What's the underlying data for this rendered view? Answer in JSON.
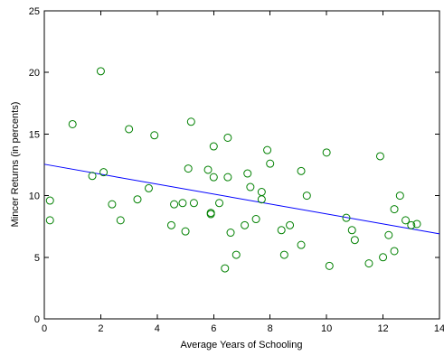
{
  "chart_data": {
    "type": "scatter",
    "title": "",
    "xlabel": "Average Years of Schooling",
    "ylabel": "Mincer Returns (in percents)",
    "xlim": [
      0,
      14
    ],
    "ylim": [
      0,
      25
    ],
    "xticks": [
      "0",
      "2",
      "4",
      "6",
      "8",
      "10",
      "12",
      "14"
    ],
    "yticks": [
      "0",
      "5",
      "10",
      "15",
      "20",
      "25"
    ],
    "grid": false,
    "legend": "none",
    "marker_color": "#008000",
    "line_color": "#0000ff",
    "points": [
      {
        "x": 0.2,
        "y": 9.6
      },
      {
        "x": 0.2,
        "y": 8.0
      },
      {
        "x": 1.0,
        "y": 15.8
      },
      {
        "x": 1.7,
        "y": 11.6
      },
      {
        "x": 2.0,
        "y": 20.1
      },
      {
        "x": 2.1,
        "y": 11.9
      },
      {
        "x": 2.4,
        "y": 9.3
      },
      {
        "x": 2.7,
        "y": 8.0
      },
      {
        "x": 3.0,
        "y": 15.4
      },
      {
        "x": 3.3,
        "y": 9.7
      },
      {
        "x": 3.7,
        "y": 10.6
      },
      {
        "x": 3.9,
        "y": 14.9
      },
      {
        "x": 4.5,
        "y": 7.6
      },
      {
        "x": 4.6,
        "y": 9.3
      },
      {
        "x": 4.9,
        "y": 9.4
      },
      {
        "x": 5.0,
        "y": 7.1
      },
      {
        "x": 5.1,
        "y": 12.2
      },
      {
        "x": 5.2,
        "y": 16.0
      },
      {
        "x": 5.3,
        "y": 9.4
      },
      {
        "x": 5.8,
        "y": 12.1
      },
      {
        "x": 5.9,
        "y": 8.6
      },
      {
        "x": 5.9,
        "y": 8.5
      },
      {
        "x": 6.0,
        "y": 14.0
      },
      {
        "x": 6.0,
        "y": 11.5
      },
      {
        "x": 6.2,
        "y": 9.4
      },
      {
        "x": 6.4,
        "y": 4.1
      },
      {
        "x": 6.5,
        "y": 14.7
      },
      {
        "x": 6.5,
        "y": 11.5
      },
      {
        "x": 6.6,
        "y": 7.0
      },
      {
        "x": 6.8,
        "y": 5.2
      },
      {
        "x": 7.1,
        "y": 7.6
      },
      {
        "x": 7.2,
        "y": 11.8
      },
      {
        "x": 7.3,
        "y": 10.7
      },
      {
        "x": 7.5,
        "y": 8.1
      },
      {
        "x": 7.7,
        "y": 10.3
      },
      {
        "x": 7.7,
        "y": 9.7
      },
      {
        "x": 7.9,
        "y": 13.7
      },
      {
        "x": 8.0,
        "y": 12.6
      },
      {
        "x": 8.4,
        "y": 7.2
      },
      {
        "x": 8.5,
        "y": 5.2
      },
      {
        "x": 8.7,
        "y": 7.6
      },
      {
        "x": 9.1,
        "y": 12.0
      },
      {
        "x": 9.1,
        "y": 6.0
      },
      {
        "x": 9.3,
        "y": 10.0
      },
      {
        "x": 10.0,
        "y": 13.5
      },
      {
        "x": 10.1,
        "y": 4.3
      },
      {
        "x": 10.7,
        "y": 8.2
      },
      {
        "x": 10.9,
        "y": 7.2
      },
      {
        "x": 11.0,
        "y": 6.4
      },
      {
        "x": 11.5,
        "y": 4.5
      },
      {
        "x": 11.9,
        "y": 13.2
      },
      {
        "x": 12.0,
        "y": 5.0
      },
      {
        "x": 12.2,
        "y": 6.8
      },
      {
        "x": 12.4,
        "y": 8.9
      },
      {
        "x": 12.4,
        "y": 5.5
      },
      {
        "x": 12.6,
        "y": 10.0
      },
      {
        "x": 12.8,
        "y": 8.0
      },
      {
        "x": 13.0,
        "y": 7.6
      },
      {
        "x": 13.2,
        "y": 7.7
      }
    ],
    "fit_line": {
      "x": [
        0,
        14
      ],
      "y": [
        12.55,
        6.9
      ]
    }
  }
}
